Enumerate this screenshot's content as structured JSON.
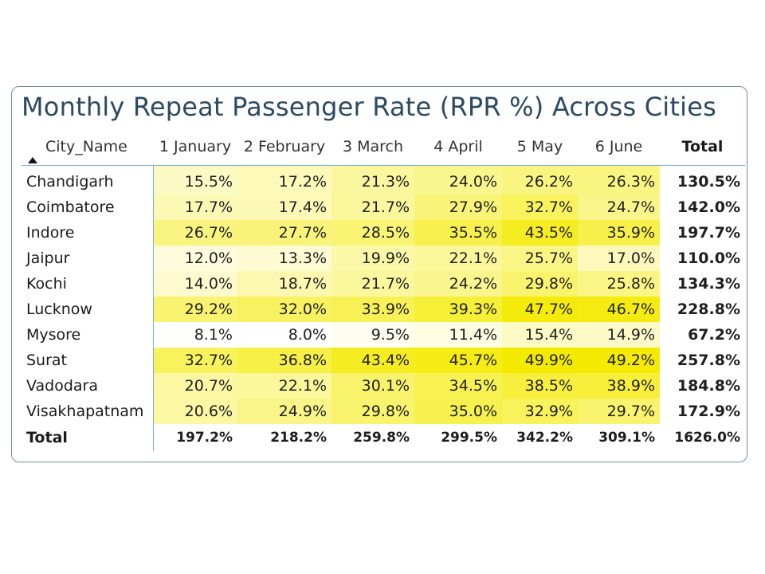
{
  "title": "Monthly Repeat Passenger Rate (RPR %) Across Cities",
  "columns": {
    "city": "City_Name",
    "months": [
      "1 January",
      "2 February",
      "3 March",
      "4 April",
      "5 May",
      "6 June"
    ],
    "total": "Total"
  },
  "rows": [
    {
      "city": "Chandigarh",
      "cells": [
        "15.5%",
        "17.2%",
        "21.3%",
        "24.0%",
        "26.2%",
        "26.3%"
      ],
      "total": "130.5%"
    },
    {
      "city": "Coimbatore",
      "cells": [
        "17.7%",
        "17.4%",
        "21.7%",
        "27.9%",
        "32.7%",
        "24.7%"
      ],
      "total": "142.0%"
    },
    {
      "city": "Indore",
      "cells": [
        "26.7%",
        "27.7%",
        "28.5%",
        "35.5%",
        "43.5%",
        "35.9%"
      ],
      "total": "197.7%"
    },
    {
      "city": "Jaipur",
      "cells": [
        "12.0%",
        "13.3%",
        "19.9%",
        "22.1%",
        "25.7%",
        "17.0%"
      ],
      "total": "110.0%"
    },
    {
      "city": "Kochi",
      "cells": [
        "14.0%",
        "18.7%",
        "21.7%",
        "24.2%",
        "29.8%",
        "25.8%"
      ],
      "total": "134.3%"
    },
    {
      "city": "Lucknow",
      "cells": [
        "29.2%",
        "32.0%",
        "33.9%",
        "39.3%",
        "47.7%",
        "46.7%"
      ],
      "total": "228.8%"
    },
    {
      "city": "Mysore",
      "cells": [
        "8.1%",
        "8.0%",
        "9.5%",
        "11.4%",
        "15.4%",
        "14.9%"
      ],
      "total": "67.2%"
    },
    {
      "city": "Surat",
      "cells": [
        "32.7%",
        "36.8%",
        "43.4%",
        "45.7%",
        "49.9%",
        "49.2%"
      ],
      "total": "257.8%"
    },
    {
      "city": "Vadodara",
      "cells": [
        "20.7%",
        "22.1%",
        "30.1%",
        "34.5%",
        "38.5%",
        "38.9%"
      ],
      "total": "184.8%"
    },
    {
      "city": "Visakhapatnam",
      "cells": [
        "20.6%",
        "24.9%",
        "29.8%",
        "35.0%",
        "32.9%",
        "29.7%"
      ],
      "total": "172.9%"
    }
  ],
  "grand_total": {
    "label": "Total",
    "cells": [
      "197.2%",
      "218.2%",
      "259.8%",
      "299.5%",
      "342.2%",
      "309.1%"
    ],
    "total": "1626.0%"
  },
  "heat_colors": {
    "low": "#ffffff",
    "high": "#f4ea00"
  },
  "chart_data": {
    "type": "heatmap",
    "title": "Monthly Repeat Passenger Rate (RPR %) Across Cities",
    "x": [
      "1 January",
      "2 February",
      "3 March",
      "4 April",
      "5 May",
      "6 June"
    ],
    "y": [
      "Chandigarh",
      "Coimbatore",
      "Indore",
      "Jaipur",
      "Kochi",
      "Lucknow",
      "Mysore",
      "Surat",
      "Vadodara",
      "Visakhapatnam"
    ],
    "values": [
      [
        15.5,
        17.2,
        21.3,
        24.0,
        26.2,
        26.3
      ],
      [
        17.7,
        17.4,
        21.7,
        27.9,
        32.7,
        24.7
      ],
      [
        26.7,
        27.7,
        28.5,
        35.5,
        43.5,
        35.9
      ],
      [
        12.0,
        13.3,
        19.9,
        22.1,
        25.7,
        17.0
      ],
      [
        14.0,
        18.7,
        21.7,
        24.2,
        29.8,
        25.8
      ],
      [
        29.2,
        32.0,
        33.9,
        39.3,
        47.7,
        46.7
      ],
      [
        8.1,
        8.0,
        9.5,
        11.4,
        15.4,
        14.9
      ],
      [
        32.7,
        36.8,
        43.4,
        45.7,
        49.9,
        49.2
      ],
      [
        20.7,
        22.1,
        30.1,
        34.5,
        38.5,
        38.9
      ],
      [
        20.6,
        24.9,
        29.8,
        35.0,
        32.9,
        29.7
      ]
    ],
    "row_totals": [
      130.5,
      142.0,
      197.7,
      110.0,
      134.3,
      228.8,
      67.2,
      257.8,
      184.8,
      172.9
    ],
    "column_totals": [
      197.2,
      218.2,
      259.8,
      299.5,
      342.2,
      309.1
    ],
    "grand_total": 1626.0
  }
}
